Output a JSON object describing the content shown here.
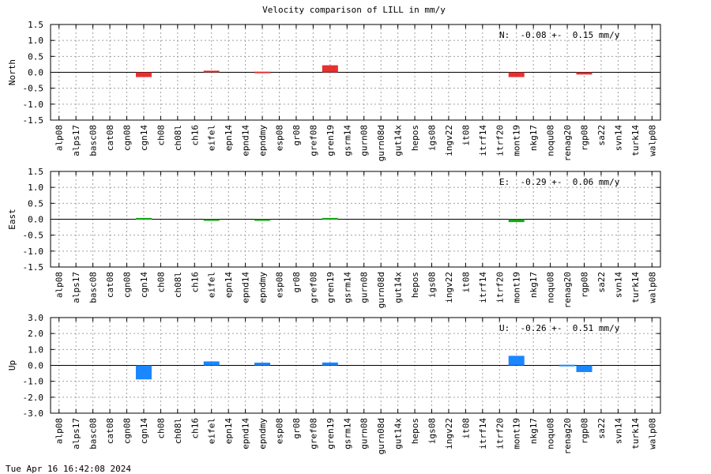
{
  "title": "Velocity comparison of LILL in mm/y",
  "timestamp": "Tue Apr 16 16:42:08 2024",
  "chart_data": {
    "type": "bar",
    "categories": [
      "alp08",
      "alps17",
      "basc08",
      "cat08",
      "cgn08",
      "cgn14",
      "ch08",
      "ch08l",
      "ch16",
      "eifel",
      "epn14",
      "epnd14",
      "epndmy",
      "esp08",
      "gr08",
      "gref08",
      "gren19",
      "gsrm14",
      "gurn08",
      "gurn08d",
      "gut14x",
      "hepos",
      "igs08",
      "ingv22",
      "it08",
      "itrf14",
      "itrf20",
      "mont19",
      "nkg17",
      "noqu08",
      "renag20",
      "rgp08",
      "sa22",
      "svn14",
      "turk14",
      "walp08"
    ],
    "panels": [
      {
        "ylabel": "North",
        "ylim": [
          -1.5,
          1.5
        ],
        "yticks": [
          "1.5",
          "1.0",
          "0.5",
          "0.0",
          "-0.5",
          "-1.0",
          "-1.5"
        ],
        "annotation": "N:  -0.08 +-  0.15 mm/y",
        "color": "#e8302f",
        "values": [
          0,
          0,
          0,
          0,
          0,
          -0.15,
          0,
          0,
          0,
          0.05,
          0,
          0,
          0.02,
          0,
          0,
          0,
          0.22,
          0,
          0,
          0,
          0,
          0,
          0,
          0,
          0,
          0,
          0,
          -0.15,
          0,
          0,
          0,
          -0.07,
          0,
          0,
          0,
          0
        ]
      },
      {
        "ylabel": "East",
        "ylim": [
          -1.5,
          1.5
        ],
        "yticks": [
          "1.5",
          "1.0",
          "0.5",
          "0.0",
          "-0.5",
          "-1.0",
          "-1.5"
        ],
        "annotation": "E:  -0.29 +-  0.06 mm/y",
        "color": "#11a911",
        "values": [
          0,
          0,
          0,
          0,
          0,
          0.04,
          0,
          0,
          0,
          -0.04,
          0,
          0,
          -0.02,
          0,
          0,
          0,
          0.04,
          0,
          0,
          0,
          0,
          0,
          0,
          0,
          0,
          0,
          0,
          -0.09,
          0,
          0,
          0,
          0,
          0,
          0,
          0,
          0
        ]
      },
      {
        "ylabel": "Up",
        "ylim": [
          -3.0,
          3.0
        ],
        "yticks": [
          "3.0",
          "2.0",
          "1.0",
          "0.0",
          "-1.0",
          "-2.0",
          "-3.0"
        ],
        "annotation": "U:  -0.26 +-  0.51 mm/y",
        "color": "#1a86ff",
        "values": [
          0,
          0,
          0,
          0,
          0,
          -0.88,
          0,
          0,
          0,
          0.25,
          0,
          0,
          0.17,
          0,
          0,
          0,
          0.18,
          0,
          0,
          0,
          0,
          0,
          0,
          0,
          0,
          0,
          0,
          0.6,
          0,
          0,
          0.04,
          -0.42,
          0,
          0,
          0,
          0
        ]
      }
    ],
    "grid": true
  }
}
